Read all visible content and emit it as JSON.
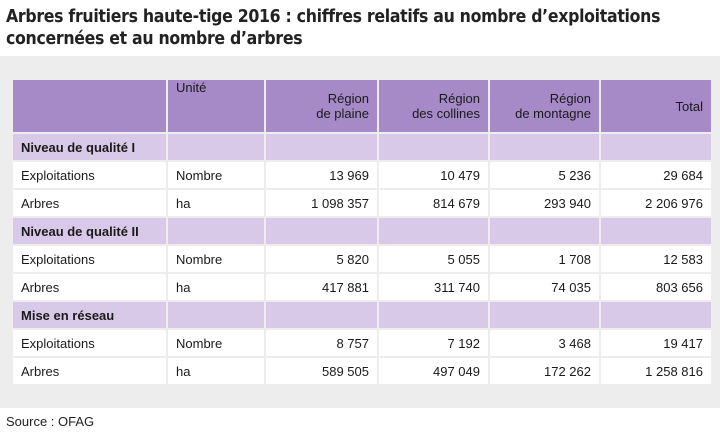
{
  "title": "Arbres fruitiers haute-tige 2016 : chiffres relatifs au nombre d’exploitations concernées et au nombre d’arbres",
  "headers": {
    "blank": "",
    "unit": "Unité",
    "plaine": {
      "l1": "Région",
      "l2": "de plaine"
    },
    "collines": {
      "l1": "Région",
      "l2": "des collines"
    },
    "montagne": {
      "l1": "Région",
      "l2": "de montagne"
    },
    "total": "Total"
  },
  "sections": [
    {
      "title": "Niveau de qualité I",
      "rows": [
        {
          "label": "Exploitations",
          "unit": "Nombre",
          "plaine": "13 969",
          "collines": "10 479",
          "montagne": "5 236",
          "total": "29 684"
        },
        {
          "label": "Arbres",
          "unit": "ha",
          "plaine": "1 098 357",
          "collines": "814 679",
          "montagne": "293 940",
          "total": "2 206 976"
        }
      ]
    },
    {
      "title": "Niveau de qualité II",
      "rows": [
        {
          "label": "Exploitations",
          "unit": "Nombre",
          "plaine": "5 820",
          "collines": "5 055",
          "montagne": "1 708",
          "total": "12 583"
        },
        {
          "label": "Arbres",
          "unit": "ha",
          "plaine": "417 881",
          "collines": "311 740",
          "montagne": "74 035",
          "total": "803 656"
        }
      ]
    },
    {
      "title": "Mise en réseau",
      "rows": [
        {
          "label": "Exploitations",
          "unit": "Nombre",
          "plaine": "8 757",
          "collines": "7 192",
          "montagne": "3 468",
          "total": "19 417"
        },
        {
          "label": "Arbres",
          "unit": "ha",
          "plaine": "589 505",
          "collines": "497 049",
          "montagne": "172 262",
          "total": "1 258 816"
        }
      ]
    }
  ],
  "source": "Source : OFAG",
  "colors": {
    "header": "#a68ac7",
    "section": "#d8c9e8",
    "panel": "#ededed"
  }
}
